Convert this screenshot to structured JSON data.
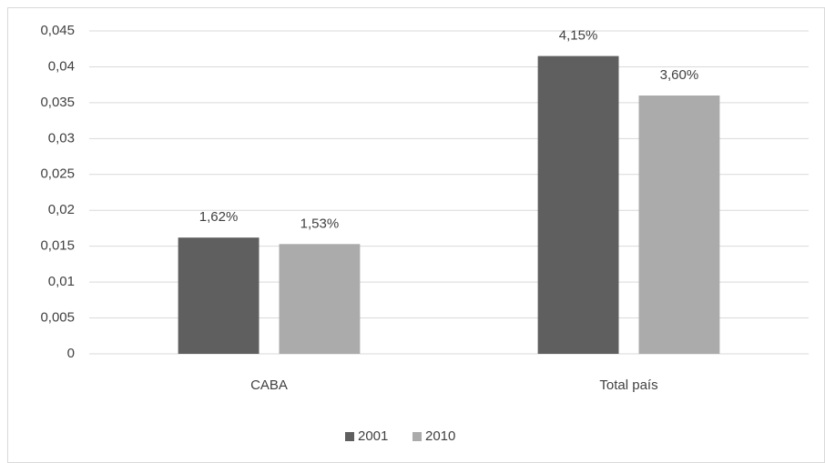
{
  "chart_data": {
    "type": "bar",
    "categories": [
      "CABA",
      "Total país"
    ],
    "series": [
      {
        "name": "2001",
        "color": "#5f5f5f",
        "values": [
          0.0162,
          0.0415
        ],
        "value_labels": [
          "1,62%",
          "4,15%"
        ]
      },
      {
        "name": "2010",
        "color": "#ababab",
        "values": [
          0.0153,
          0.036
        ],
        "value_labels": [
          "1,53%",
          "3,60%"
        ]
      }
    ],
    "ylim": [
      0,
      0.045
    ],
    "yticks": [
      0,
      {
        "value": 0.005,
        "label": "0,005"
      },
      {
        "value": 0.01,
        "label": "0,01"
      },
      {
        "value": 0.015,
        "label": "0,015"
      },
      {
        "value": 0.02,
        "label": "0,02"
      },
      {
        "value": 0.025,
        "label": "0,025"
      },
      {
        "value": 0.03,
        "label": "0,03"
      },
      {
        "value": 0.035,
        "label": "0,035"
      },
      {
        "value": 0.04,
        "label": "0,04"
      },
      {
        "value": 0.045,
        "label": "0,045"
      }
    ],
    "grid": true,
    "legend": "bottom"
  }
}
